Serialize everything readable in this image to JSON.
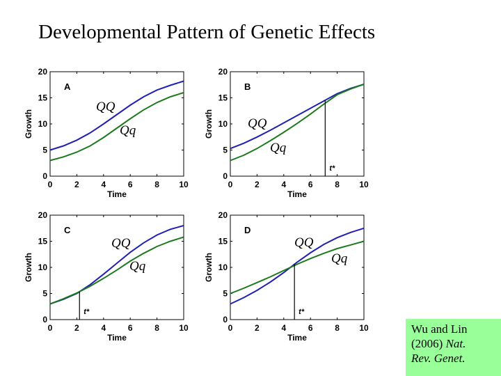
{
  "slide": {
    "title": "Developmental Pattern of Genetic Effects",
    "citation": {
      "authors": "Wu and Lin",
      "year": "(2006)",
      "journal_part1": "Nat.",
      "journal_part2": "Rev. Genet."
    }
  },
  "colors": {
    "QQ": "#1f1fb3",
    "Qq": "#1c7a1c"
  },
  "chart_data": [
    {
      "type": "line",
      "panel_label": "A",
      "xlabel": "Time",
      "ylabel": "Growth",
      "xlim": [
        0,
        10
      ],
      "ylim": [
        0,
        20
      ],
      "xticks": [
        "0",
        "2",
        "4",
        "6",
        "8",
        "10"
      ],
      "yticks": [
        "0",
        "5",
        "10",
        "15",
        "20"
      ],
      "x": [
        0,
        1,
        2,
        3,
        4,
        5,
        6,
        7,
        8,
        9,
        10
      ],
      "series": [
        {
          "name": "QQ",
          "values": [
            5.0,
            5.8,
            6.9,
            8.3,
            10.0,
            11.8,
            13.6,
            15.2,
            16.5,
            17.4,
            18.2
          ]
        },
        {
          "name": "Qq",
          "values": [
            3.0,
            3.7,
            4.6,
            5.8,
            7.4,
            9.2,
            11.0,
            12.7,
            14.1,
            15.2,
            16.0
          ]
        }
      ],
      "annotations": [
        "QQ",
        "Qq"
      ]
    },
    {
      "type": "line",
      "panel_label": "B",
      "xlabel": "Time",
      "ylabel": "Growth",
      "xlim": [
        0,
        10
      ],
      "ylim": [
        0,
        20
      ],
      "xticks": [
        "0",
        "2",
        "4",
        "6",
        "8",
        "10"
      ],
      "yticks": [
        "0",
        "5",
        "10",
        "15",
        "20"
      ],
      "x": [
        0,
        1,
        2,
        3,
        4,
        5,
        6,
        7,
        8,
        9,
        10
      ],
      "series": [
        {
          "name": "QQ",
          "values": [
            5.3,
            6.3,
            7.5,
            8.8,
            10.2,
            11.6,
            13.0,
            14.4,
            15.8,
            16.8,
            17.6
          ]
        },
        {
          "name": "Qq",
          "values": [
            3.0,
            4.0,
            5.3,
            6.8,
            8.4,
            10.1,
            11.9,
            13.8,
            15.6,
            16.7,
            17.6
          ]
        }
      ],
      "t_star": 7.1,
      "t_star_label": "t*",
      "annotations": [
        "QQ",
        "Qq"
      ]
    },
    {
      "type": "line",
      "panel_label": "C",
      "xlabel": "Time",
      "ylabel": "Growth",
      "xlim": [
        0,
        10
      ],
      "ylim": [
        0,
        20
      ],
      "xticks": [
        "0",
        "2",
        "4",
        "6",
        "8",
        "10"
      ],
      "yticks": [
        "0",
        "5",
        "10",
        "15",
        "20"
      ],
      "x": [
        0,
        1,
        2,
        3,
        4,
        5,
        6,
        7,
        8,
        9,
        10
      ],
      "series": [
        {
          "name": "QQ",
          "values": [
            3.0,
            3.9,
            5.0,
            6.7,
            8.7,
            10.8,
            12.9,
            14.7,
            16.2,
            17.3,
            18.0
          ]
        },
        {
          "name": "Qq",
          "values": [
            3.0,
            4.0,
            5.1,
            6.4,
            7.9,
            9.5,
            11.2,
            12.7,
            14.0,
            15.0,
            15.8
          ]
        }
      ],
      "t_star": 2.2,
      "t_star_label": "t*",
      "annotations": [
        "QQ",
        "Qq"
      ]
    },
    {
      "type": "line",
      "panel_label": "D",
      "xlabel": "Time",
      "ylabel": "Growth",
      "xlim": [
        0,
        10
      ],
      "ylim": [
        0,
        20
      ],
      "xticks": [
        "0",
        "2",
        "4",
        "6",
        "8",
        "10"
      ],
      "yticks": [
        "0",
        "5",
        "10",
        "15",
        "20"
      ],
      "x": [
        0,
        1,
        2,
        3,
        4,
        5,
        6,
        7,
        8,
        9,
        10
      ],
      "series": [
        {
          "name": "QQ",
          "values": [
            3.0,
            4.2,
            5.6,
            7.2,
            9.0,
            11.0,
            12.8,
            14.4,
            15.7,
            16.7,
            17.5
          ]
        },
        {
          "name": "Qq",
          "values": [
            5.0,
            6.0,
            7.1,
            8.2,
            9.4,
            10.6,
            11.7,
            12.7,
            13.6,
            14.3,
            15.0
          ]
        }
      ],
      "t_star": 4.8,
      "t_star_label": "t*",
      "annotations": [
        "QQ",
        "Qq"
      ]
    }
  ]
}
